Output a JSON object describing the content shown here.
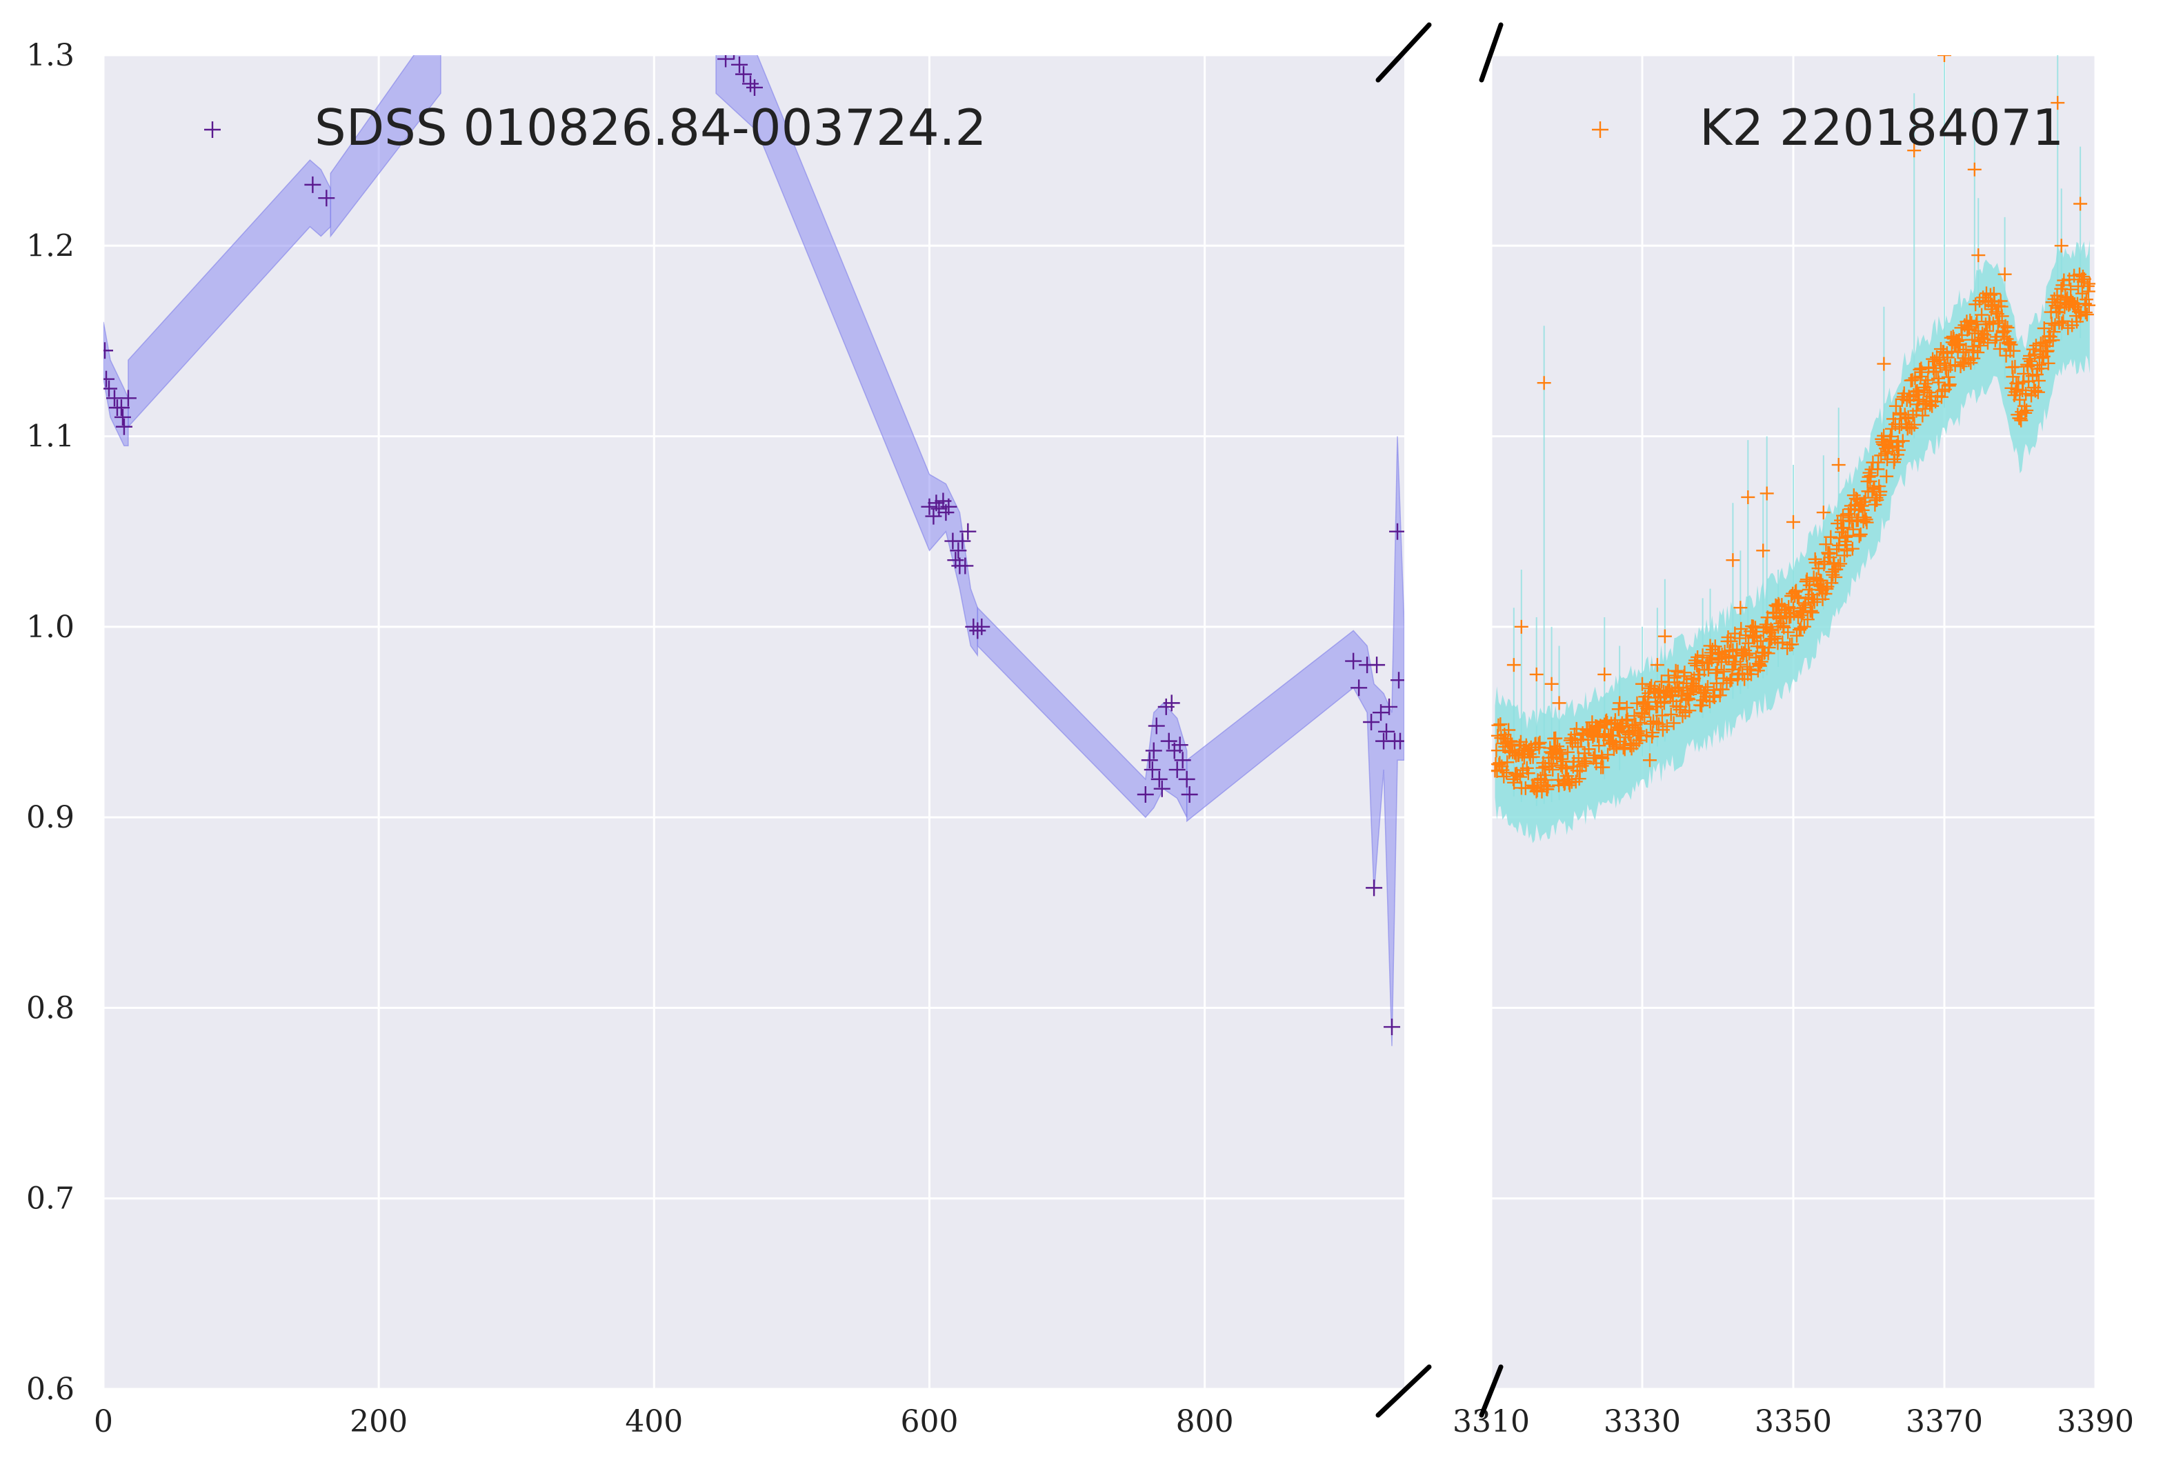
{
  "chart_data": [
    {
      "type": "scatter",
      "panel": "left",
      "xlim": [
        0,
        945
      ],
      "ylim": [
        0.6,
        1.3
      ],
      "xticks": [
        0,
        200,
        400,
        600,
        800
      ],
      "yticks": [
        0.6,
        0.7,
        0.8,
        0.9,
        1.0,
        1.1,
        1.2,
        1.3
      ],
      "grid": true,
      "legend_position": "top-left",
      "series": [
        {
          "name": "SDSS 010826.84-003724.2",
          "marker": "+",
          "color": "#5b1a8f",
          "points": [
            [
              1,
              1.145
            ],
            [
              2,
              1.13
            ],
            [
              4,
              1.125
            ],
            [
              8,
              1.12
            ],
            [
              10,
              1.115
            ],
            [
              13,
              1.115
            ],
            [
              14,
              1.11
            ],
            [
              15,
              1.105
            ],
            [
              18,
              1.12
            ],
            [
              152,
              1.232
            ],
            [
              162,
              1.225
            ],
            [
              452,
              1.298
            ],
            [
              458,
              1.302
            ],
            [
              462,
              1.295
            ],
            [
              465,
              1.29
            ],
            [
              470,
              1.285
            ],
            [
              473,
              1.283
            ],
            [
              600,
              1.063
            ],
            [
              603,
              1.058
            ],
            [
              605,
              1.065
            ],
            [
              607,
              1.062
            ],
            [
              610,
              1.066
            ],
            [
              612,
              1.06
            ],
            [
              614,
              1.063
            ],
            [
              617,
              1.045
            ],
            [
              619,
              1.035
            ],
            [
              621,
              1.04
            ],
            [
              622,
              1.032
            ],
            [
              624,
              1.045
            ],
            [
              626,
              1.032
            ],
            [
              628,
              1.05
            ],
            [
              632,
              1.0
            ],
            [
              635,
              0.998
            ],
            [
              638,
              1.0
            ],
            [
              757,
              0.912
            ],
            [
              760,
              0.93
            ],
            [
              762,
              0.925
            ],
            [
              763,
              0.935
            ],
            [
              765,
              0.948
            ],
            [
              767,
              0.92
            ],
            [
              769,
              0.915
            ],
            [
              772,
              0.958
            ],
            [
              774,
              0.94
            ],
            [
              776,
              0.96
            ],
            [
              778,
              0.935
            ],
            [
              780,
              0.925
            ],
            [
              782,
              0.938
            ],
            [
              784,
              0.93
            ],
            [
              787,
              0.92
            ],
            [
              789,
              0.912
            ],
            [
              908,
              0.982
            ],
            [
              912,
              0.968
            ],
            [
              918,
              0.98
            ],
            [
              921,
              0.95
            ],
            [
              923,
              0.863
            ],
            [
              925,
              0.98
            ],
            [
              928,
              0.955
            ],
            [
              930,
              0.94
            ],
            [
              932,
              0.945
            ],
            [
              934,
              0.958
            ],
            [
              936,
              0.79
            ],
            [
              938,
              0.94
            ],
            [
              940,
              1.05
            ],
            [
              941,
              0.972
            ],
            [
              942,
              0.94
            ]
          ],
          "band": {
            "color": "#8e8ef0",
            "segments": [
              [
                [
                  0,
                  1.16,
                  1.13
                ],
                [
                  5,
                  1.14,
                  1.11
                ],
                [
                  15,
                  1.125,
                  1.095
                ],
                [
                  18,
                  1.12,
                  1.095
                ]
              ],
              [
                [
                  18,
                  1.14,
                  1.105
                ],
                [
                  150,
                  1.245,
                  1.21
                ],
                [
                  158,
                  1.24,
                  1.205
                ],
                [
                  165,
                  1.23,
                  1.21
                ]
              ],
              [
                [
                  165,
                  1.238,
                  1.205
                ],
                [
                  245,
                  1.32,
                  1.28
                ]
              ],
              [
                [
                  445,
                  1.32,
                  1.28
                ],
                [
                  475,
                  1.3,
                  1.26
                ],
                [
                  600,
                  1.08,
                  1.04
                ],
                [
                  612,
                  1.075,
                  1.05
                ],
                [
                  622,
                  1.06,
                  1.02
                ],
                [
                  630,
                  1.02,
                  0.99
                ],
                [
                  635,
                  1.01,
                  0.985
                ]
              ],
              [
                [
                  635,
                  1.01,
                  0.99
                ],
                [
                  757,
                  0.92,
                  0.9
                ],
                [
                  763,
                  0.955,
                  0.905
                ],
                [
                  770,
                  0.96,
                  0.915
                ],
                [
                  780,
                  0.952,
                  0.91
                ],
                [
                  787,
                  0.935,
                  0.9
                ]
              ],
              [
                [
                  787,
                  0.93,
                  0.898
                ],
                [
                  908,
                  0.998,
                  0.968
                ],
                [
                  918,
                  0.99,
                  0.955
                ],
                [
                  923,
                  0.97,
                  0.86
                ],
                [
                  930,
                  0.965,
                  0.925
                ],
                [
                  936,
                  0.955,
                  0.78
                ],
                [
                  940,
                  1.1,
                  0.93
                ],
                [
                  945,
                  1.0,
                  0.93
                ]
              ]
            ]
          }
        }
      ]
    },
    {
      "type": "scatter",
      "panel": "right",
      "xlim": [
        3310,
        3390
      ],
      "ylim": [
        0.6,
        1.3
      ],
      "xticks": [
        3310,
        3330,
        3350,
        3370,
        3390
      ],
      "grid": true,
      "legend_position": "top-right",
      "series": [
        {
          "name": "K2 220184071",
          "marker": "+",
          "color": "#ff7f0e",
          "trend": [
            [
              3310,
              0.94
            ],
            [
              3315,
              0.925
            ],
            [
              3320,
              0.93
            ],
            [
              3325,
              0.94
            ],
            [
              3330,
              0.952
            ],
            [
              3335,
              0.965
            ],
            [
              3340,
              0.977
            ],
            [
              3345,
              0.99
            ],
            [
              3350,
              1.005
            ],
            [
              3355,
              1.035
            ],
            [
              3360,
              1.07
            ],
            [
              3365,
              1.115
            ],
            [
              3370,
              1.135
            ],
            [
              3375,
              1.16
            ],
            [
              3377,
              1.165
            ],
            [
              3380,
              1.12
            ],
            [
              3383,
              1.14
            ],
            [
              3385,
              1.17
            ],
            [
              3389,
              1.172
            ]
          ],
          "outliers": [
            [
              3313,
              0.98
            ],
            [
              3314,
              1.0
            ],
            [
              3316,
              0.975
            ],
            [
              3317,
              1.128
            ],
            [
              3318,
              0.97
            ],
            [
              3319,
              0.96
            ],
            [
              3325,
              0.975
            ],
            [
              3327,
              0.96
            ],
            [
              3330,
              0.97
            ],
            [
              3331,
              0.93
            ],
            [
              3332,
              0.98
            ],
            [
              3333,
              0.995
            ],
            [
              3338,
              0.985
            ],
            [
              3339,
              0.99
            ],
            [
              3342,
              1.035
            ],
            [
              3343,
              1.01
            ],
            [
              3344,
              1.068
            ],
            [
              3346,
              1.04
            ],
            [
              3346.5,
              1.07
            ],
            [
              3348,
              1.0
            ],
            [
              3350,
              1.055
            ],
            [
              3354,
              1.06
            ],
            [
              3356,
              1.085
            ],
            [
              3362,
              1.138
            ],
            [
              3366,
              1.25
            ],
            [
              3370,
              1.3
            ],
            [
              3374,
              1.24
            ],
            [
              3374.5,
              1.195
            ],
            [
              3378,
              1.185
            ],
            [
              3385,
              1.275
            ],
            [
              3385.5,
              1.2
            ],
            [
              3388,
              1.222
            ]
          ],
          "band": {
            "color": "#8fe0e0"
          }
        }
      ]
    }
  ]
}
